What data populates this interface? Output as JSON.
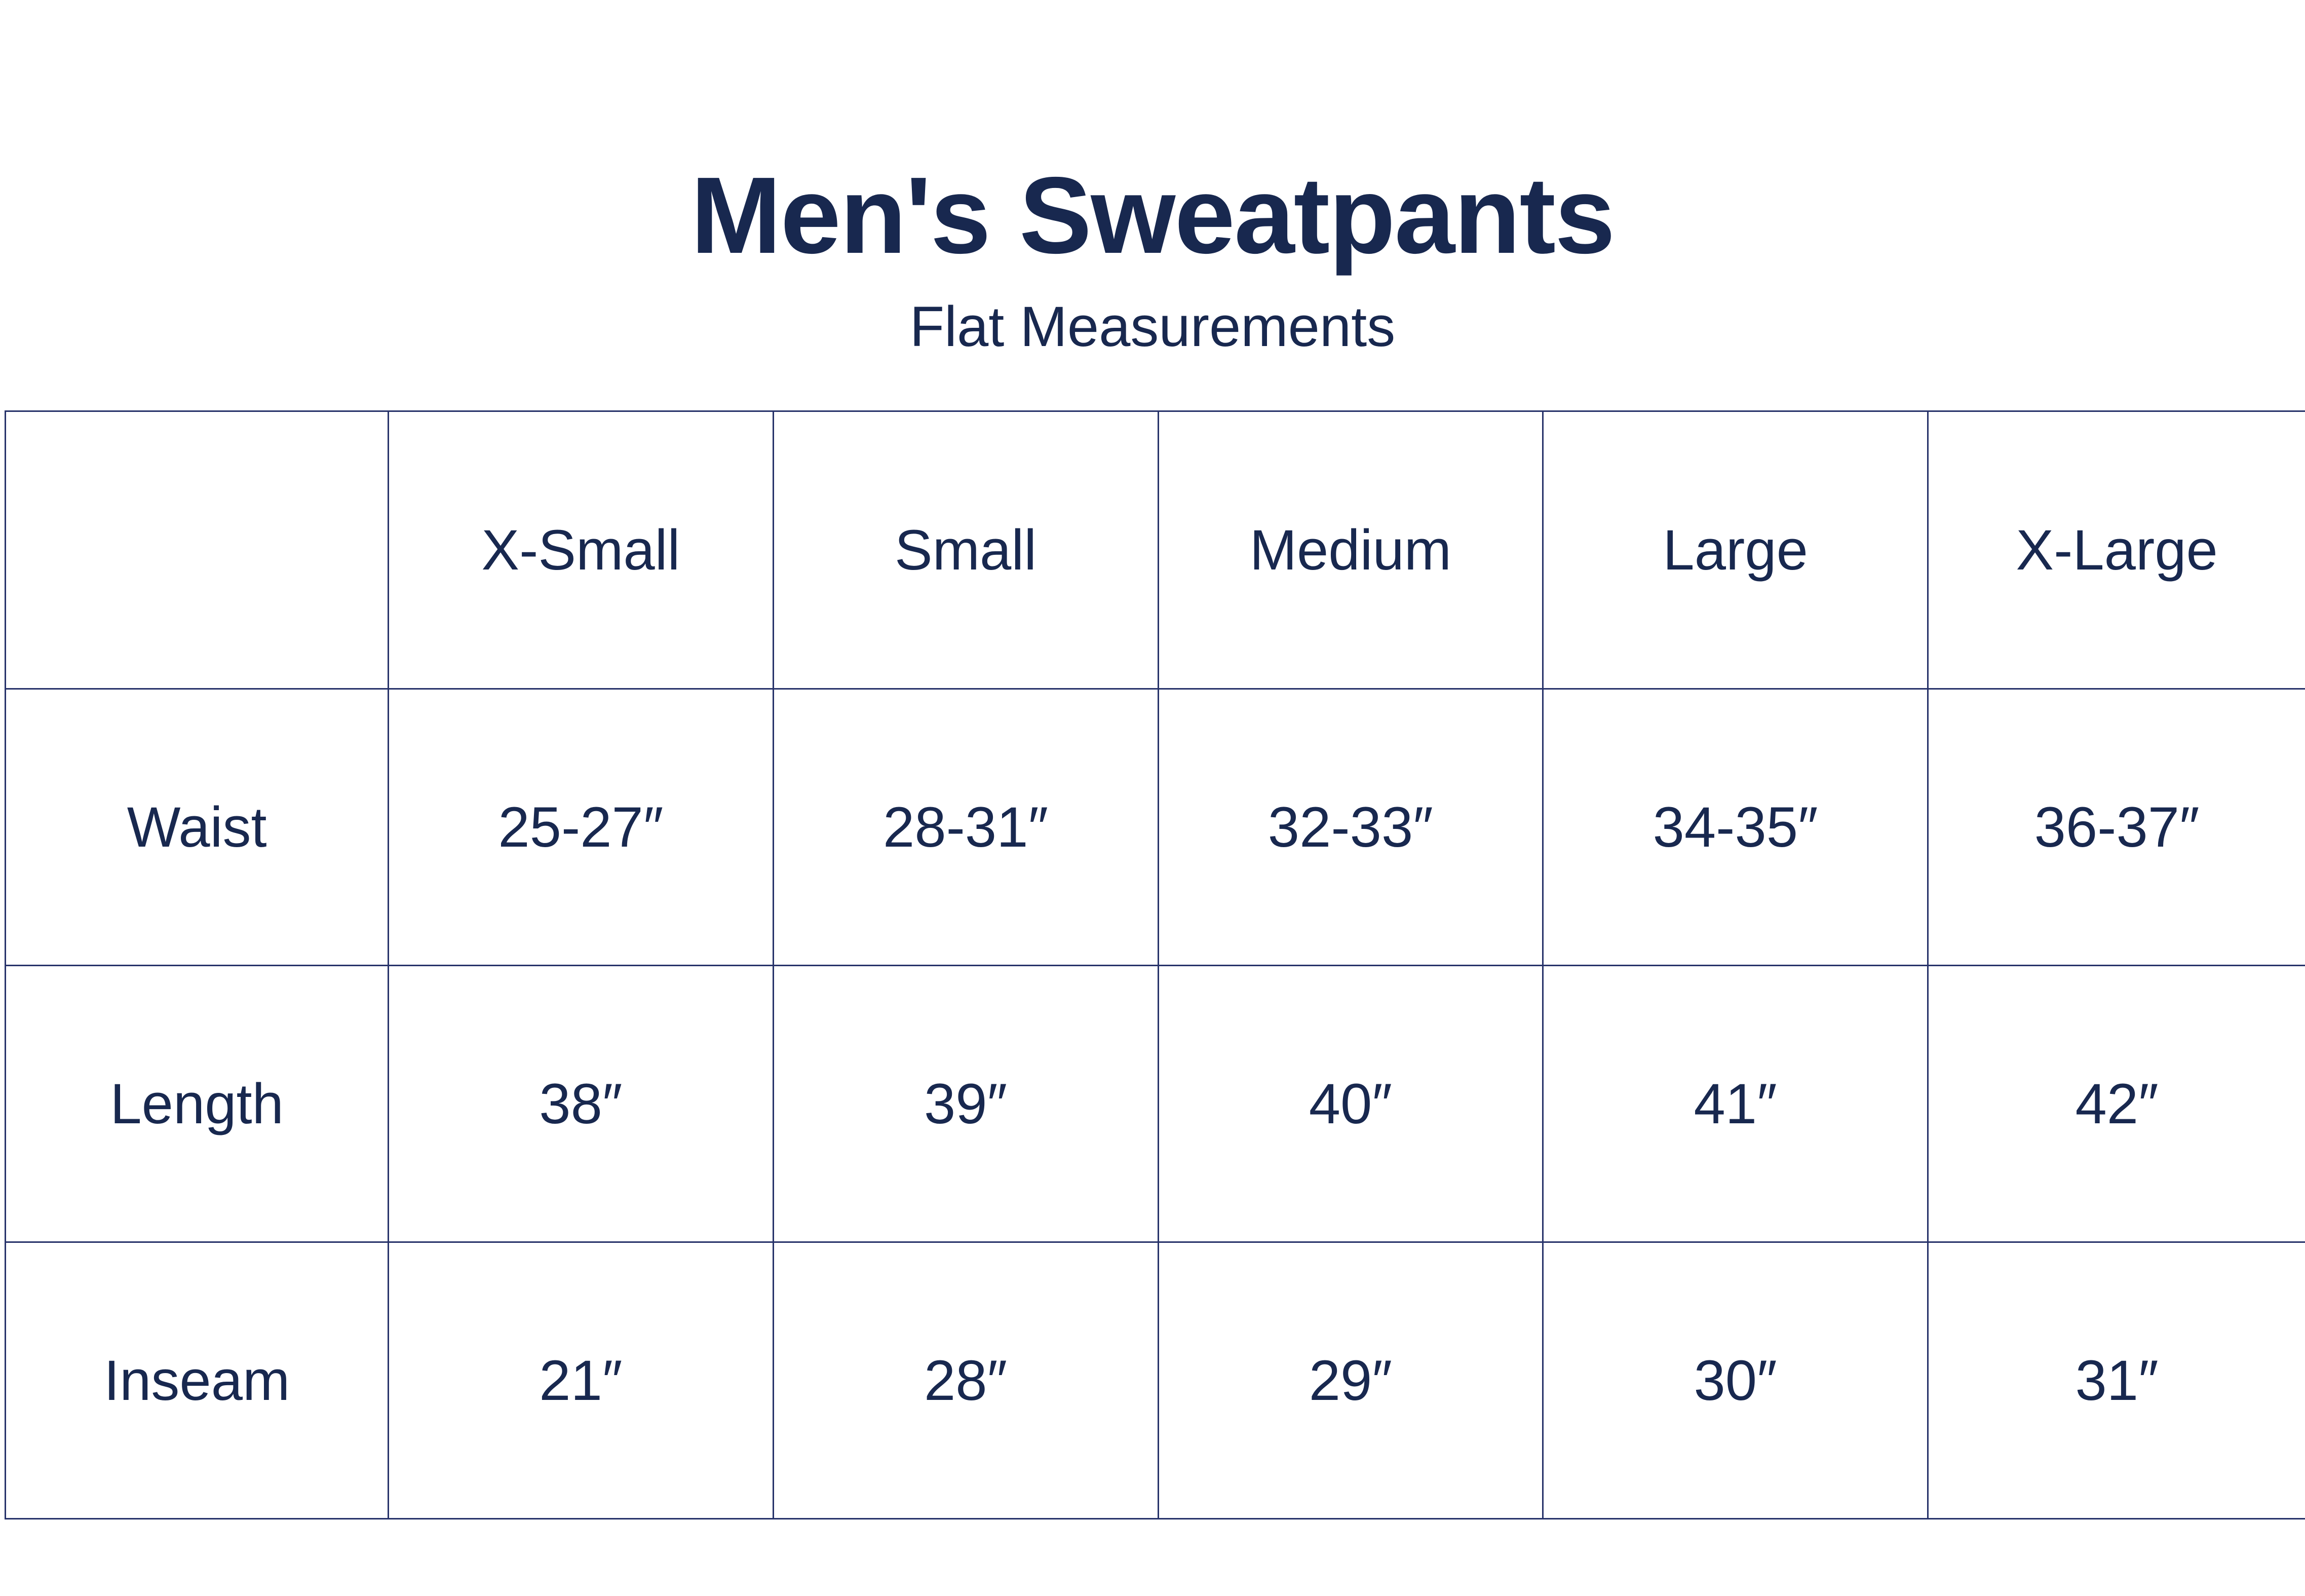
{
  "title": "Men's Sweatpants",
  "subtitle": "Flat Measurements",
  "colors": {
    "text": "#18284f",
    "border": "#27336a"
  },
  "table": {
    "columns": [
      "",
      "X-Small",
      "Small",
      "Medium",
      "Large",
      "X-Large"
    ],
    "rows": [
      {
        "label": "Waist",
        "values": [
          "25-27″",
          "28-31″",
          "32-33″",
          "34-35″",
          "36-37″"
        ]
      },
      {
        "label": "Length",
        "values": [
          "38″",
          "39″",
          "40″",
          "41″",
          "42″"
        ]
      },
      {
        "label": "Inseam",
        "values": [
          "21″",
          "28″",
          "29″",
          "30″",
          "31″"
        ]
      }
    ]
  }
}
